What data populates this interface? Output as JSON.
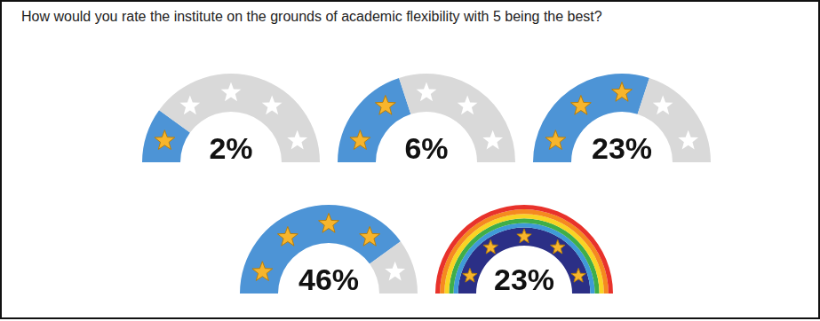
{
  "chart_data": {
    "type": "gauge",
    "title": "How would you rate the institute on the grounds of academic flexibility with 5 being the best?",
    "stars": [
      1,
      2,
      3,
      4,
      5
    ],
    "stars_total": 5,
    "values": [
      2,
      6,
      23,
      46,
      23
    ],
    "value_labels": [
      "2%",
      "6%",
      "23%",
      "46%",
      "23%"
    ],
    "color": "#4d94d6",
    "data_labels": true
  }
}
